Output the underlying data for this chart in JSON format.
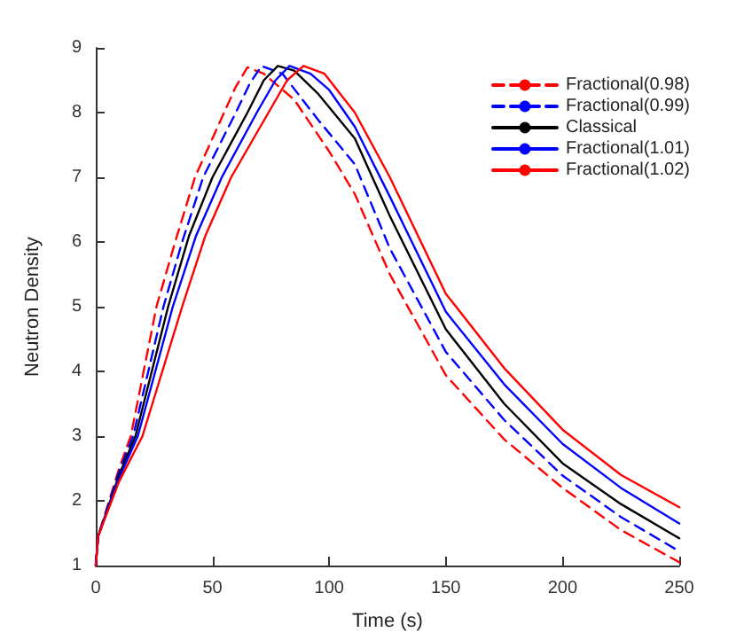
{
  "chart_data": {
    "type": "line",
    "xlabel": "Time (s)",
    "ylabel": "Neutron Density",
    "xlim": [
      0,
      250
    ],
    "xticks": [
      0,
      50,
      100,
      150,
      200,
      250
    ],
    "ylim": [
      1,
      9
    ],
    "yticks": [
      1,
      2,
      3,
      4,
      5,
      6,
      7,
      8,
      9
    ],
    "grid": false,
    "legend": "top right",
    "marker": "none",
    "line_style": "solid",
    "series": [
      {
        "name": "Fractional(0.98)",
        "color": "#ff0000",
        "line_style": "dashed",
        "x": [
          0,
          1,
          10,
          15,
          26,
          34,
          42.5,
          55,
          60,
          65,
          72,
          85,
          100,
          111,
          126,
          150,
          175,
          200,
          225,
          250
        ],
        "values": [
          1,
          1.45,
          2.5,
          3.0,
          5.0,
          6.0,
          7.0,
          8.0,
          8.4,
          8.7,
          8.6,
          8.2,
          7.4,
          6.74,
          5.5,
          3.94,
          2.95,
          2.2,
          1.55,
          1.05
        ]
      },
      {
        "name": "Fractional(0.99)",
        "color": "#0000ff",
        "line_style": "dashed",
        "x": [
          0,
          1,
          10,
          16,
          29,
          37,
          46,
          60,
          66,
          71,
          80,
          95,
          111,
          126,
          150,
          175,
          200,
          225,
          250
        ],
        "values": [
          1,
          1.45,
          2.45,
          3.0,
          5.0,
          6.0,
          7.0,
          8.0,
          8.45,
          8.72,
          8.6,
          7.9,
          7.2,
          5.9,
          4.3,
          3.25,
          2.39,
          1.75,
          1.22
        ]
      },
      {
        "name": "Classical",
        "color": "#000000",
        "x": [
          0,
          1,
          10,
          17,
          31,
          40,
          50,
          65,
          72,
          78,
          85,
          95,
          111,
          126,
          150,
          175,
          200,
          225,
          250
        ],
        "values": [
          1,
          1.45,
          2.4,
          3.0,
          5.0,
          6.1,
          7.0,
          8.0,
          8.5,
          8.72,
          8.65,
          8.3,
          7.6,
          6.4,
          4.65,
          3.5,
          2.58,
          1.95,
          1.42
        ]
      },
      {
        "name": "Fractional(1.01)",
        "color": "#0000ff",
        "x": [
          0,
          1,
          10,
          18,
          33,
          43,
          54,
          69,
          77,
          83,
          92,
          100,
          111,
          126,
          150,
          175,
          200,
          225,
          250
        ],
        "values": [
          1,
          1.45,
          2.35,
          3.0,
          5.0,
          6.1,
          7.0,
          8.0,
          8.5,
          8.72,
          8.6,
          8.35,
          7.78,
          6.7,
          4.92,
          3.8,
          2.88,
          2.2,
          1.65
        ]
      },
      {
        "name": "Fractional(1.02)",
        "color": "#ff0000",
        "x": [
          0,
          1,
          10,
          20,
          37,
          47,
          58,
          74,
          82,
          89,
          98,
          111,
          126,
          150,
          175,
          200,
          225,
          250
        ],
        "values": [
          1,
          1.45,
          2.3,
          3.0,
          5.0,
          6.1,
          7.0,
          8.0,
          8.5,
          8.72,
          8.6,
          8.0,
          7.0,
          5.2,
          4.05,
          3.1,
          2.4,
          1.9
        ]
      }
    ]
  }
}
